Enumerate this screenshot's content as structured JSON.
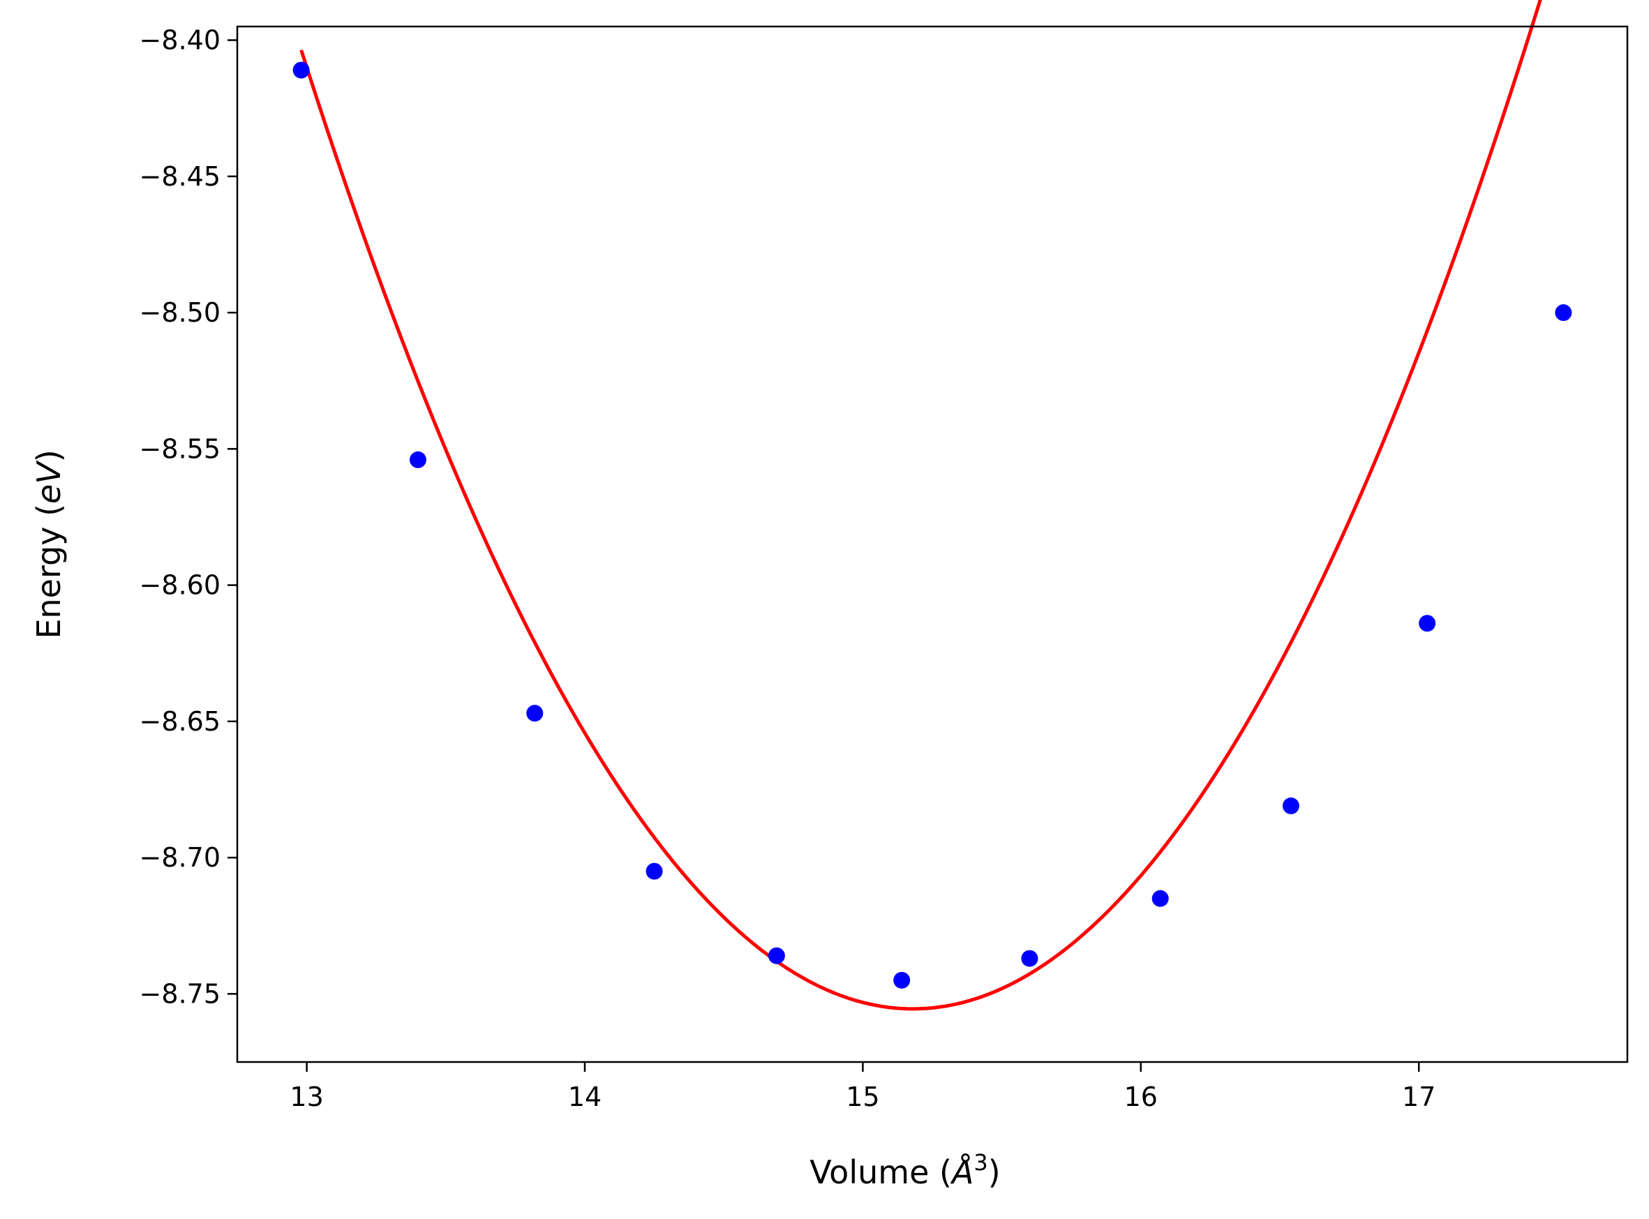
{
  "chart_data": {
    "type": "scatter",
    "title": "",
    "xlabel": "Volume (Å³)",
    "xlabel_parts": {
      "prefix": "Volume (",
      "symbol": "Å",
      "exponent": "3",
      "suffix": ")"
    },
    "ylabel": "Energy (eV)",
    "ylabel_parts": {
      "prefix": "Energy (",
      "unit": "eV",
      "suffix": ")"
    },
    "xlim": [
      12.75,
      17.75
    ],
    "ylim": [
      -8.775,
      -8.395
    ],
    "xticks": [
      13,
      14,
      15,
      16,
      17
    ],
    "xtick_labels": [
      "13",
      "14",
      "15",
      "16",
      "17"
    ],
    "yticks": [
      -8.4,
      -8.45,
      -8.5,
      -8.55,
      -8.6,
      -8.65,
      -8.7,
      -8.75
    ],
    "ytick_labels": [
      "−8.40",
      "−8.45",
      "−8.50",
      "−8.55",
      "−8.60",
      "−8.65",
      "−8.70",
      "−8.75"
    ],
    "grid": false,
    "legend": "none",
    "series": [
      {
        "type": "scatter",
        "color": "#0000ff",
        "marker": "circle",
        "x": [
          12.98,
          13.4,
          13.82,
          14.25,
          14.69,
          15.14,
          15.6,
          16.07,
          16.54,
          17.03,
          17.52
        ],
        "y": [
          -8.411,
          -8.554,
          -8.647,
          -8.705,
          -8.736,
          -8.745,
          -8.737,
          -8.715,
          -8.681,
          -8.614,
          -8.5
        ]
      },
      {
        "type": "line",
        "color": "#ff0000",
        "fit": {
          "model": "quadratic",
          "x0": 15.18,
          "y0": -8.7555,
          "a": 0.0727
        },
        "x_range": [
          12.98,
          17.52
        ]
      }
    ]
  }
}
